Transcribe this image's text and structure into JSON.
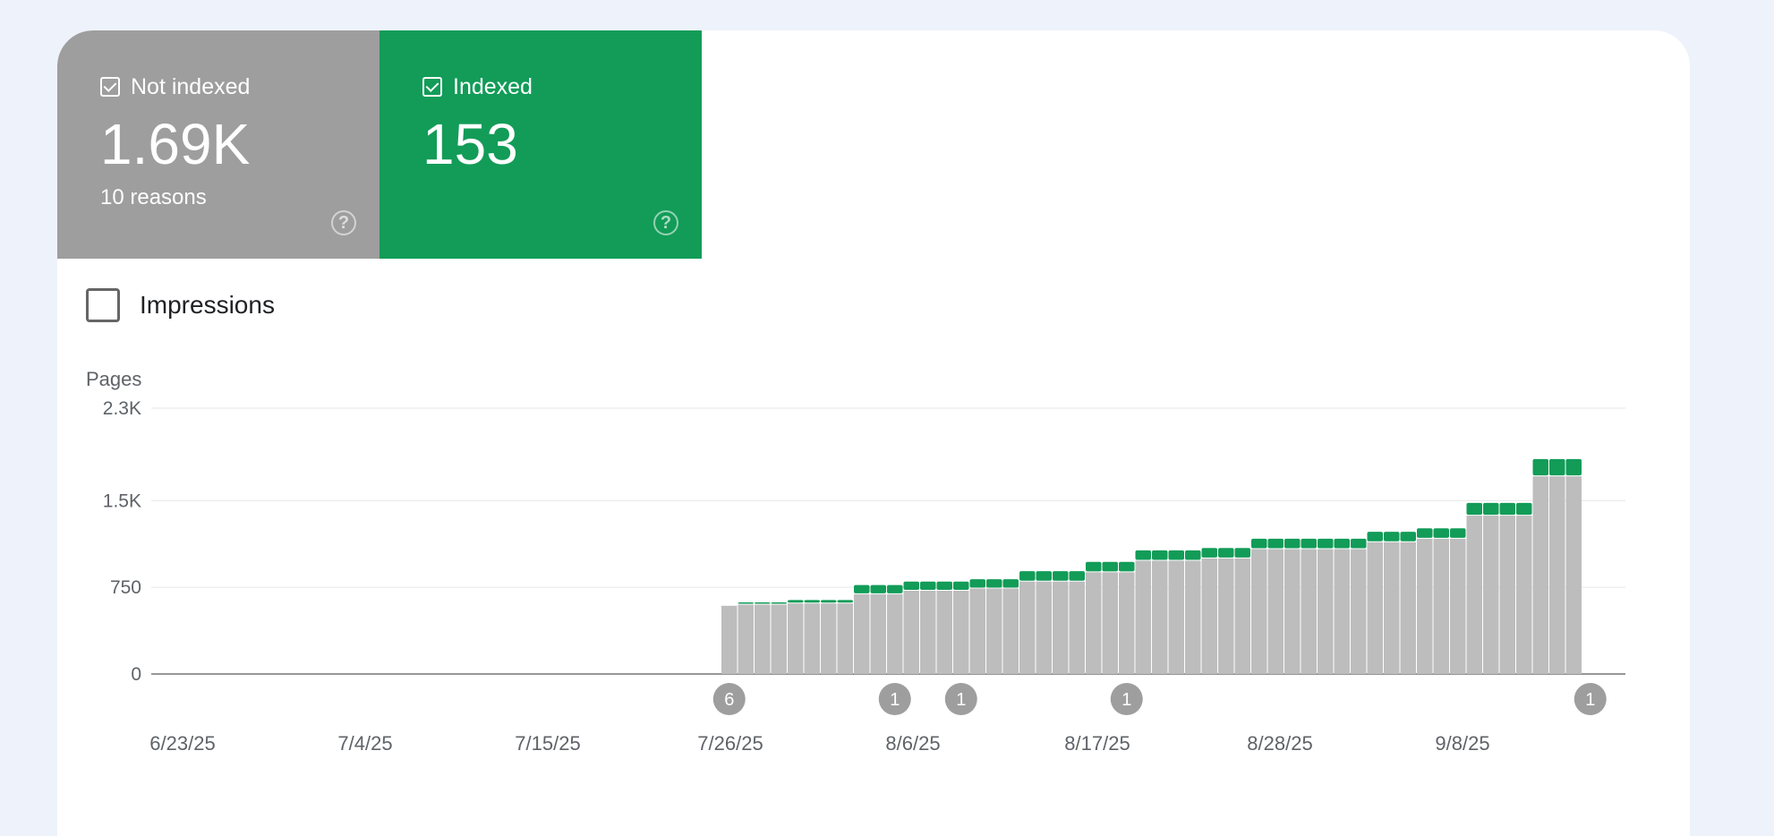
{
  "tiles": {
    "not_indexed": {
      "label": "Not indexed",
      "value": "1.69K",
      "sub": "10 reasons",
      "color": "#9e9e9e"
    },
    "indexed": {
      "label": "Indexed",
      "value": "153",
      "color": "#129c58"
    }
  },
  "impressions_label": "Impressions",
  "chart_data": {
    "type": "bar",
    "stacked": true,
    "ylabel": "Pages",
    "ylim": [
      0,
      2300
    ],
    "yticks": [
      0,
      750,
      1500,
      2300
    ],
    "ytick_labels": [
      "0",
      "750",
      "1.5K",
      "2.3K"
    ],
    "xtick_labels": [
      "6/23/25",
      "7/4/25",
      "7/15/25",
      "7/26/25",
      "8/6/25",
      "8/17/25",
      "8/28/25",
      "9/8/25"
    ],
    "grid": true,
    "bars_start_index": 34,
    "day_count": 88,
    "series": [
      {
        "name": "Not indexed",
        "color": "#bdbdbd",
        "values": [
          590,
          600,
          600,
          600,
          610,
          610,
          610,
          610,
          690,
          690,
          690,
          720,
          720,
          720,
          720,
          740,
          740,
          740,
          800,
          800,
          800,
          800,
          880,
          880,
          880,
          980,
          980,
          980,
          980,
          1000,
          1000,
          1000,
          1080,
          1080,
          1080,
          1080,
          1080,
          1080,
          1080,
          1140,
          1140,
          1140,
          1170,
          1170,
          1170,
          1370,
          1370,
          1370,
          1370,
          1710,
          1710,
          1710
        ]
      },
      {
        "name": "Indexed",
        "color": "#129c58",
        "values": [
          0,
          20,
          20,
          20,
          30,
          30,
          30,
          30,
          80,
          80,
          80,
          80,
          80,
          80,
          80,
          80,
          80,
          80,
          90,
          90,
          90,
          90,
          90,
          90,
          90,
          90,
          90,
          90,
          90,
          90,
          90,
          90,
          90,
          90,
          90,
          90,
          90,
          90,
          90,
          90,
          90,
          90,
          90,
          90,
          90,
          110,
          110,
          110,
          110,
          150,
          150,
          150
        ]
      }
    ],
    "annotations": [
      {
        "day": 34,
        "label": "6"
      },
      {
        "day": 44,
        "label": "1"
      },
      {
        "day": 48,
        "label": "1"
      },
      {
        "day": 58,
        "label": "1"
      },
      {
        "day": 86,
        "label": "1"
      }
    ]
  }
}
